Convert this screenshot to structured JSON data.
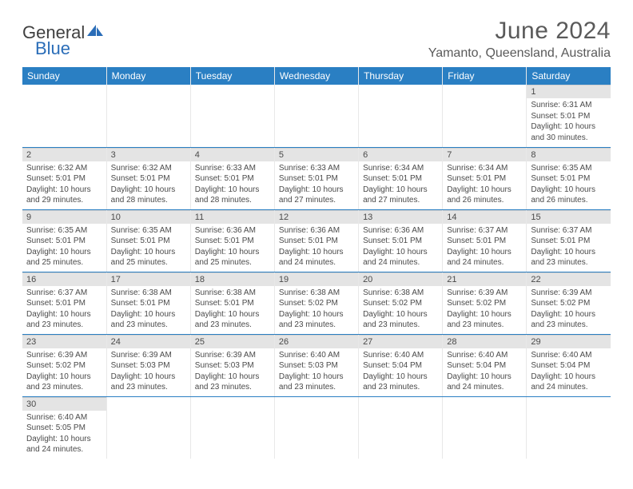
{
  "logo": {
    "general": "General",
    "blue": "Blue",
    "sail_color": "#2a6db8"
  },
  "title": "June 2024",
  "subtitle": "Yamanto, Queensland, Australia",
  "colors": {
    "header_bg": "#2a7fc3",
    "header_text": "#ffffff",
    "daynum_bg": "#e4e4e4",
    "row_divider": "#2a7fc3",
    "text": "#4a4a4a"
  },
  "weekdays": [
    "Sunday",
    "Monday",
    "Tuesday",
    "Wednesday",
    "Thursday",
    "Friday",
    "Saturday"
  ],
  "weeks": [
    [
      null,
      null,
      null,
      null,
      null,
      null,
      {
        "n": "1",
        "sr": "Sunrise: 6:31 AM",
        "ss": "Sunset: 5:01 PM",
        "d1": "Daylight: 10 hours",
        "d2": "and 30 minutes."
      }
    ],
    [
      {
        "n": "2",
        "sr": "Sunrise: 6:32 AM",
        "ss": "Sunset: 5:01 PM",
        "d1": "Daylight: 10 hours",
        "d2": "and 29 minutes."
      },
      {
        "n": "3",
        "sr": "Sunrise: 6:32 AM",
        "ss": "Sunset: 5:01 PM",
        "d1": "Daylight: 10 hours",
        "d2": "and 28 minutes."
      },
      {
        "n": "4",
        "sr": "Sunrise: 6:33 AM",
        "ss": "Sunset: 5:01 PM",
        "d1": "Daylight: 10 hours",
        "d2": "and 28 minutes."
      },
      {
        "n": "5",
        "sr": "Sunrise: 6:33 AM",
        "ss": "Sunset: 5:01 PM",
        "d1": "Daylight: 10 hours",
        "d2": "and 27 minutes."
      },
      {
        "n": "6",
        "sr": "Sunrise: 6:34 AM",
        "ss": "Sunset: 5:01 PM",
        "d1": "Daylight: 10 hours",
        "d2": "and 27 minutes."
      },
      {
        "n": "7",
        "sr": "Sunrise: 6:34 AM",
        "ss": "Sunset: 5:01 PM",
        "d1": "Daylight: 10 hours",
        "d2": "and 26 minutes."
      },
      {
        "n": "8",
        "sr": "Sunrise: 6:35 AM",
        "ss": "Sunset: 5:01 PM",
        "d1": "Daylight: 10 hours",
        "d2": "and 26 minutes."
      }
    ],
    [
      {
        "n": "9",
        "sr": "Sunrise: 6:35 AM",
        "ss": "Sunset: 5:01 PM",
        "d1": "Daylight: 10 hours",
        "d2": "and 25 minutes."
      },
      {
        "n": "10",
        "sr": "Sunrise: 6:35 AM",
        "ss": "Sunset: 5:01 PM",
        "d1": "Daylight: 10 hours",
        "d2": "and 25 minutes."
      },
      {
        "n": "11",
        "sr": "Sunrise: 6:36 AM",
        "ss": "Sunset: 5:01 PM",
        "d1": "Daylight: 10 hours",
        "d2": "and 25 minutes."
      },
      {
        "n": "12",
        "sr": "Sunrise: 6:36 AM",
        "ss": "Sunset: 5:01 PM",
        "d1": "Daylight: 10 hours",
        "d2": "and 24 minutes."
      },
      {
        "n": "13",
        "sr": "Sunrise: 6:36 AM",
        "ss": "Sunset: 5:01 PM",
        "d1": "Daylight: 10 hours",
        "d2": "and 24 minutes."
      },
      {
        "n": "14",
        "sr": "Sunrise: 6:37 AM",
        "ss": "Sunset: 5:01 PM",
        "d1": "Daylight: 10 hours",
        "d2": "and 24 minutes."
      },
      {
        "n": "15",
        "sr": "Sunrise: 6:37 AM",
        "ss": "Sunset: 5:01 PM",
        "d1": "Daylight: 10 hours",
        "d2": "and 23 minutes."
      }
    ],
    [
      {
        "n": "16",
        "sr": "Sunrise: 6:37 AM",
        "ss": "Sunset: 5:01 PM",
        "d1": "Daylight: 10 hours",
        "d2": "and 23 minutes."
      },
      {
        "n": "17",
        "sr": "Sunrise: 6:38 AM",
        "ss": "Sunset: 5:01 PM",
        "d1": "Daylight: 10 hours",
        "d2": "and 23 minutes."
      },
      {
        "n": "18",
        "sr": "Sunrise: 6:38 AM",
        "ss": "Sunset: 5:01 PM",
        "d1": "Daylight: 10 hours",
        "d2": "and 23 minutes."
      },
      {
        "n": "19",
        "sr": "Sunrise: 6:38 AM",
        "ss": "Sunset: 5:02 PM",
        "d1": "Daylight: 10 hours",
        "d2": "and 23 minutes."
      },
      {
        "n": "20",
        "sr": "Sunrise: 6:38 AM",
        "ss": "Sunset: 5:02 PM",
        "d1": "Daylight: 10 hours",
        "d2": "and 23 minutes."
      },
      {
        "n": "21",
        "sr": "Sunrise: 6:39 AM",
        "ss": "Sunset: 5:02 PM",
        "d1": "Daylight: 10 hours",
        "d2": "and 23 minutes."
      },
      {
        "n": "22",
        "sr": "Sunrise: 6:39 AM",
        "ss": "Sunset: 5:02 PM",
        "d1": "Daylight: 10 hours",
        "d2": "and 23 minutes."
      }
    ],
    [
      {
        "n": "23",
        "sr": "Sunrise: 6:39 AM",
        "ss": "Sunset: 5:02 PM",
        "d1": "Daylight: 10 hours",
        "d2": "and 23 minutes."
      },
      {
        "n": "24",
        "sr": "Sunrise: 6:39 AM",
        "ss": "Sunset: 5:03 PM",
        "d1": "Daylight: 10 hours",
        "d2": "and 23 minutes."
      },
      {
        "n": "25",
        "sr": "Sunrise: 6:39 AM",
        "ss": "Sunset: 5:03 PM",
        "d1": "Daylight: 10 hours",
        "d2": "and 23 minutes."
      },
      {
        "n": "26",
        "sr": "Sunrise: 6:40 AM",
        "ss": "Sunset: 5:03 PM",
        "d1": "Daylight: 10 hours",
        "d2": "and 23 minutes."
      },
      {
        "n": "27",
        "sr": "Sunrise: 6:40 AM",
        "ss": "Sunset: 5:04 PM",
        "d1": "Daylight: 10 hours",
        "d2": "and 23 minutes."
      },
      {
        "n": "28",
        "sr": "Sunrise: 6:40 AM",
        "ss": "Sunset: 5:04 PM",
        "d1": "Daylight: 10 hours",
        "d2": "and 24 minutes."
      },
      {
        "n": "29",
        "sr": "Sunrise: 6:40 AM",
        "ss": "Sunset: 5:04 PM",
        "d1": "Daylight: 10 hours",
        "d2": "and 24 minutes."
      }
    ],
    [
      {
        "n": "30",
        "sr": "Sunrise: 6:40 AM",
        "ss": "Sunset: 5:05 PM",
        "d1": "Daylight: 10 hours",
        "d2": "and 24 minutes."
      },
      null,
      null,
      null,
      null,
      null,
      null
    ]
  ]
}
